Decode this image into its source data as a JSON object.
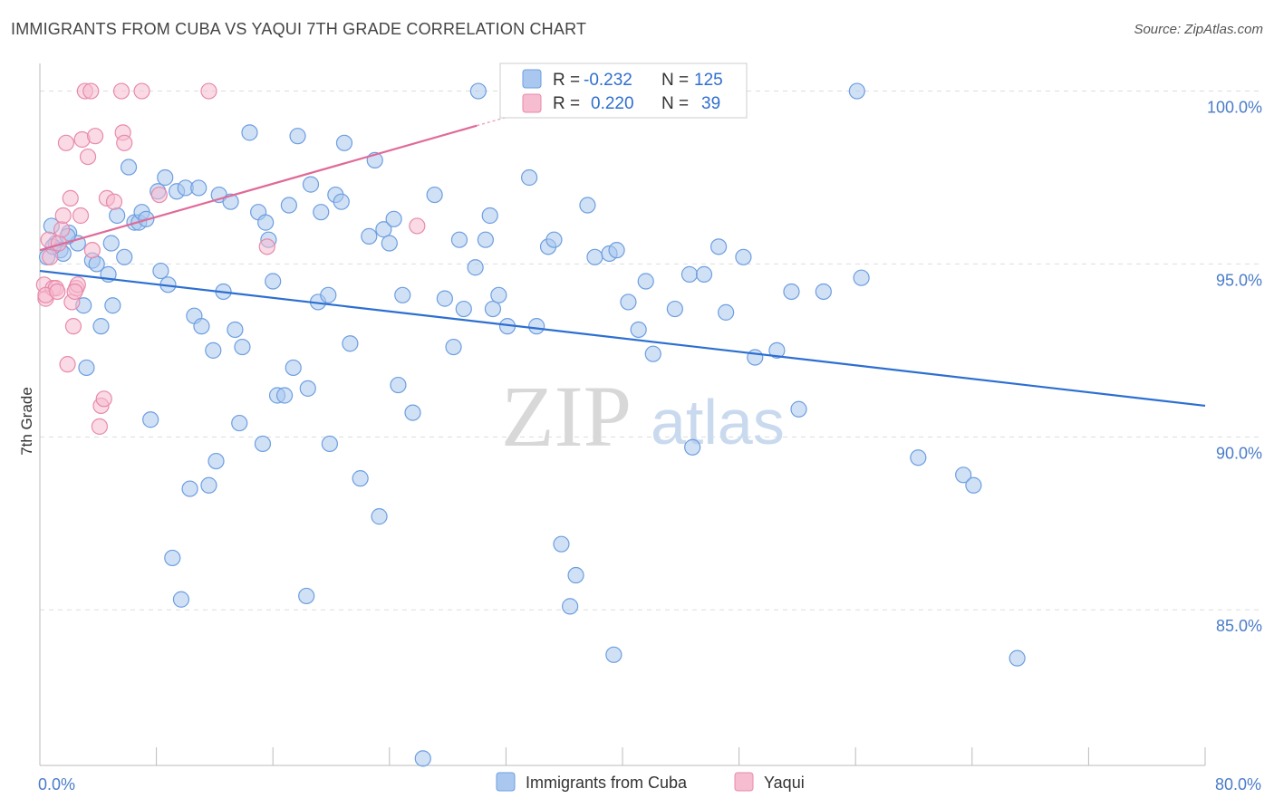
{
  "title": "IMMIGRANTS FROM CUBA VS YAQUI 7TH GRADE CORRELATION CHART",
  "source": "Source: ZipAtlas.com",
  "watermark": {
    "zip": "ZIP",
    "atlas": "atlas"
  },
  "chart_data": {
    "type": "scatter",
    "title": "IMMIGRANTS FROM CUBA VS YAQUI 7TH GRADE CORRELATION CHART",
    "xlabel": "",
    "ylabel": "7th Grade",
    "xlim": [
      0,
      80
    ],
    "ylim": [
      80.5,
      100.8
    ],
    "x_tick_labels": [
      {
        "value": 0,
        "label": "0.0%"
      },
      {
        "value": 80,
        "label": "80.0%"
      }
    ],
    "x_minor_ticks": [
      8,
      16,
      24,
      32,
      40,
      48,
      56,
      64,
      72,
      80
    ],
    "y_ticks": [
      {
        "value": 100,
        "label": "100.0%"
      },
      {
        "value": 95,
        "label": "95.0%"
      },
      {
        "value": 90,
        "label": "90.0%"
      },
      {
        "value": 85,
        "label": "85.0%"
      }
    ],
    "grid": true,
    "legend": {
      "position": "top-center",
      "entries": [
        {
          "series": "Immigrants from Cuba",
          "r_label": "R =",
          "r_value": "-0.232",
          "n_label": "N =",
          "n_value": "125"
        },
        {
          "series": "Yaqui",
          "r_label": "R =",
          "r_value": "0.220",
          "n_label": "N =",
          "n_value": "39"
        }
      ]
    },
    "colors": {
      "cuba_fill": "#aac8ef",
      "cuba_stroke": "#6d9ee0",
      "cuba_line": "#2c6fd1",
      "yaqui_fill": "#f6bcd0",
      "yaqui_stroke": "#e88aab",
      "yaqui_line": "#e06a98",
      "grid": "#dddddd",
      "axis": "#bbbbbb"
    },
    "series": [
      {
        "name": "Immigrants from Cuba",
        "trend": {
          "x": [
            0,
            80
          ],
          "y": [
            94.8,
            90.9
          ]
        },
        "points": [
          [
            0.5,
            95.2
          ],
          [
            0.8,
            96.1
          ],
          [
            1.1,
            95.6
          ],
          [
            1.4,
            95.4
          ],
          [
            1.6,
            95.3
          ],
          [
            2.0,
            95.9
          ],
          [
            2.6,
            95.6
          ],
          [
            3.0,
            93.8
          ],
          [
            3.2,
            92.0
          ],
          [
            3.6,
            95.1
          ],
          [
            3.9,
            95.0
          ],
          [
            4.2,
            93.2
          ],
          [
            4.7,
            94.7
          ],
          [
            4.9,
            95.6
          ],
          [
            5.0,
            93.8
          ],
          [
            5.3,
            96.4
          ],
          [
            5.8,
            95.2
          ],
          [
            6.1,
            97.8
          ],
          [
            6.5,
            96.2
          ],
          [
            6.8,
            96.2
          ],
          [
            7.0,
            96.5
          ],
          [
            7.3,
            96.3
          ],
          [
            7.6,
            90.5
          ],
          [
            8.1,
            97.1
          ],
          [
            8.3,
            94.8
          ],
          [
            8.6,
            97.5
          ],
          [
            8.8,
            94.4
          ],
          [
            9.1,
            86.5
          ],
          [
            9.4,
            97.1
          ],
          [
            9.7,
            85.3
          ],
          [
            10.0,
            97.2
          ],
          [
            10.3,
            88.5
          ],
          [
            10.6,
            93.5
          ],
          [
            10.9,
            97.2
          ],
          [
            11.1,
            93.2
          ],
          [
            11.6,
            88.6
          ],
          [
            11.9,
            92.5
          ],
          [
            12.1,
            89.3
          ],
          [
            12.3,
            97.0
          ],
          [
            12.6,
            94.2
          ],
          [
            13.1,
            96.8
          ],
          [
            13.4,
            93.1
          ],
          [
            13.7,
            90.4
          ],
          [
            13.9,
            92.6
          ],
          [
            14.4,
            98.8
          ],
          [
            15.0,
            96.5
          ],
          [
            15.3,
            89.8
          ],
          [
            15.5,
            96.2
          ],
          [
            15.7,
            95.7
          ],
          [
            16.0,
            94.5
          ],
          [
            16.3,
            91.2
          ],
          [
            16.8,
            91.2
          ],
          [
            17.1,
            96.7
          ],
          [
            17.4,
            92.0
          ],
          [
            17.7,
            98.7
          ],
          [
            18.3,
            85.4
          ],
          [
            18.4,
            91.4
          ],
          [
            18.6,
            97.3
          ],
          [
            19.1,
            93.9
          ],
          [
            19.3,
            96.5
          ],
          [
            19.8,
            94.1
          ],
          [
            19.9,
            89.8
          ],
          [
            20.3,
            97.0
          ],
          [
            20.7,
            96.8
          ],
          [
            20.9,
            98.5
          ],
          [
            21.3,
            92.7
          ],
          [
            22.0,
            88.8
          ],
          [
            22.6,
            95.8
          ],
          [
            23.0,
            98.0
          ],
          [
            23.3,
            87.7
          ],
          [
            23.6,
            96.0
          ],
          [
            24.0,
            95.6
          ],
          [
            24.3,
            96.3
          ],
          [
            24.6,
            91.5
          ],
          [
            24.9,
            94.1
          ],
          [
            25.6,
            90.7
          ],
          [
            26.3,
            80.7
          ],
          [
            27.1,
            97.0
          ],
          [
            27.8,
            94.0
          ],
          [
            28.4,
            92.6
          ],
          [
            28.8,
            95.7
          ],
          [
            29.1,
            93.7
          ],
          [
            29.9,
            94.9
          ],
          [
            30.1,
            100.0
          ],
          [
            30.6,
            95.7
          ],
          [
            30.9,
            96.4
          ],
          [
            31.1,
            93.7
          ],
          [
            31.5,
            94.1
          ],
          [
            32.1,
            93.2
          ],
          [
            33.6,
            97.5
          ],
          [
            34.1,
            93.2
          ],
          [
            34.9,
            95.5
          ],
          [
            35.3,
            95.7
          ],
          [
            35.8,
            86.9
          ],
          [
            36.4,
            85.1
          ],
          [
            36.8,
            86.0
          ],
          [
            37.6,
            96.7
          ],
          [
            38.1,
            95.2
          ],
          [
            39.1,
            95.3
          ],
          [
            39.4,
            83.7
          ],
          [
            39.6,
            95.4
          ],
          [
            40.4,
            93.9
          ],
          [
            41.1,
            93.1
          ],
          [
            41.6,
            94.5
          ],
          [
            42.1,
            92.4
          ],
          [
            43.6,
            93.7
          ],
          [
            44.8,
            89.7
          ],
          [
            44.6,
            94.7
          ],
          [
            45.6,
            94.7
          ],
          [
            46.6,
            95.5
          ],
          [
            47.1,
            93.6
          ],
          [
            48.3,
            95.2
          ],
          [
            49.1,
            92.3
          ],
          [
            50.6,
            92.5
          ],
          [
            51.6,
            94.2
          ],
          [
            52.1,
            90.8
          ],
          [
            53.8,
            94.2
          ],
          [
            56.1,
            100.0
          ],
          [
            56.4,
            94.6
          ],
          [
            60.3,
            89.4
          ],
          [
            63.4,
            88.9
          ],
          [
            64.1,
            88.6
          ],
          [
            67.1,
            83.6
          ],
          [
            0.9,
            95.5
          ],
          [
            1.9,
            95.8
          ]
        ]
      },
      {
        "name": "Yaqui",
        "trend": {
          "x": [
            0,
            30
          ],
          "y": [
            95.4,
            99.0
          ]
        },
        "points": [
          [
            0.3,
            94.4
          ],
          [
            0.4,
            94.0
          ],
          [
            0.6,
            95.7
          ],
          [
            0.7,
            95.2
          ],
          [
            0.9,
            94.3
          ],
          [
            1.1,
            94.3
          ],
          [
            1.3,
            95.6
          ],
          [
            1.5,
            96.0
          ],
          [
            1.6,
            96.4
          ],
          [
            1.8,
            98.5
          ],
          [
            1.9,
            92.1
          ],
          [
            2.1,
            96.9
          ],
          [
            2.2,
            93.9
          ],
          [
            2.3,
            93.2
          ],
          [
            2.5,
            94.3
          ],
          [
            2.6,
            94.4
          ],
          [
            2.8,
            96.4
          ],
          [
            2.9,
            98.6
          ],
          [
            3.1,
            100.0
          ],
          [
            3.3,
            98.1
          ],
          [
            3.5,
            100.0
          ],
          [
            3.6,
            95.4
          ],
          [
            3.8,
            98.7
          ],
          [
            4.1,
            90.3
          ],
          [
            4.2,
            90.9
          ],
          [
            4.4,
            91.1
          ],
          [
            4.6,
            96.9
          ],
          [
            5.1,
            96.8
          ],
          [
            5.6,
            100.0
          ],
          [
            5.7,
            98.8
          ],
          [
            5.8,
            98.5
          ],
          [
            7.0,
            100.0
          ],
          [
            8.2,
            97.0
          ],
          [
            11.6,
            100.0
          ],
          [
            15.6,
            95.5
          ],
          [
            25.9,
            96.1
          ],
          [
            0.4,
            94.1
          ],
          [
            1.2,
            94.2
          ],
          [
            2.4,
            94.2
          ]
        ]
      }
    ]
  },
  "bottom_legend": [
    {
      "label": "Immigrants from Cuba"
    },
    {
      "label": "Yaqui"
    }
  ]
}
